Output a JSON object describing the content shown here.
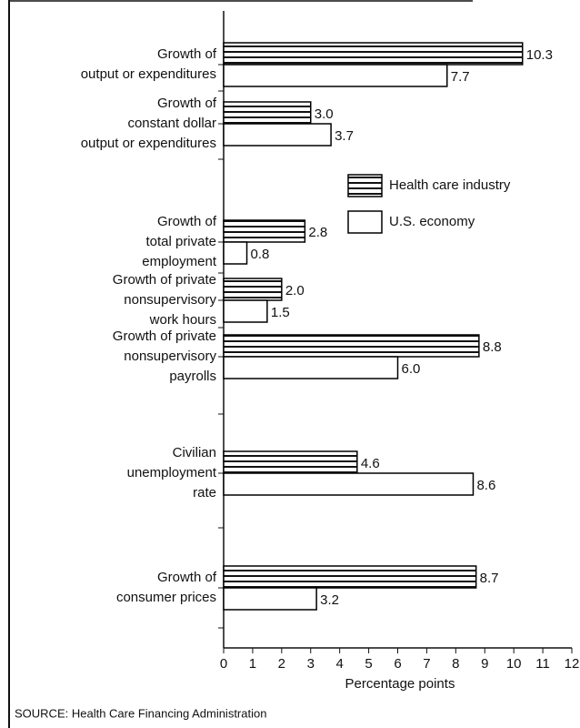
{
  "chart_data": {
    "type": "hbar",
    "categories": [
      [
        "Growth of",
        "output or expenditures"
      ],
      [
        "Growth of",
        "constant dollar",
        "output or expenditures"
      ],
      [
        "Growth of",
        "total private",
        "employment"
      ],
      [
        "Growth of private",
        "nonsupervisory",
        "work hours"
      ],
      [
        "Growth of private",
        "nonsupervisory",
        "payrolls"
      ],
      [
        "Civilian",
        "unemployment",
        "rate"
      ],
      [
        "Growth of",
        "consumer prices"
      ]
    ],
    "series": [
      {
        "name": "Health care industry",
        "color": "#000000",
        "pattern": "striped",
        "values": [
          10.3,
          3.0,
          2.8,
          2.0,
          8.8,
          4.6,
          8.7
        ],
        "value_labels": [
          "10.3",
          "3.0",
          "2.8",
          "2.0",
          "8.8",
          "4.6",
          "8.7"
        ]
      },
      {
        "name": "U.S. economy",
        "color": "#000000",
        "pattern": "none",
        "values": [
          7.7,
          3.7,
          0.8,
          1.5,
          6.0,
          8.6,
          3.2
        ],
        "value_labels": [
          "7.7",
          "3.7",
          "0.8",
          "1.5",
          "6.0",
          "8.6",
          "3.2"
        ]
      }
    ],
    "xlim": [
      0,
      12
    ],
    "xticks": [
      0,
      1,
      2,
      3,
      4,
      5,
      6,
      7,
      8,
      9,
      10,
      11,
      12
    ],
    "xlabel": "Percentage points",
    "source": "SOURCE: Health Care Financing Administration",
    "legend": "upper right"
  }
}
